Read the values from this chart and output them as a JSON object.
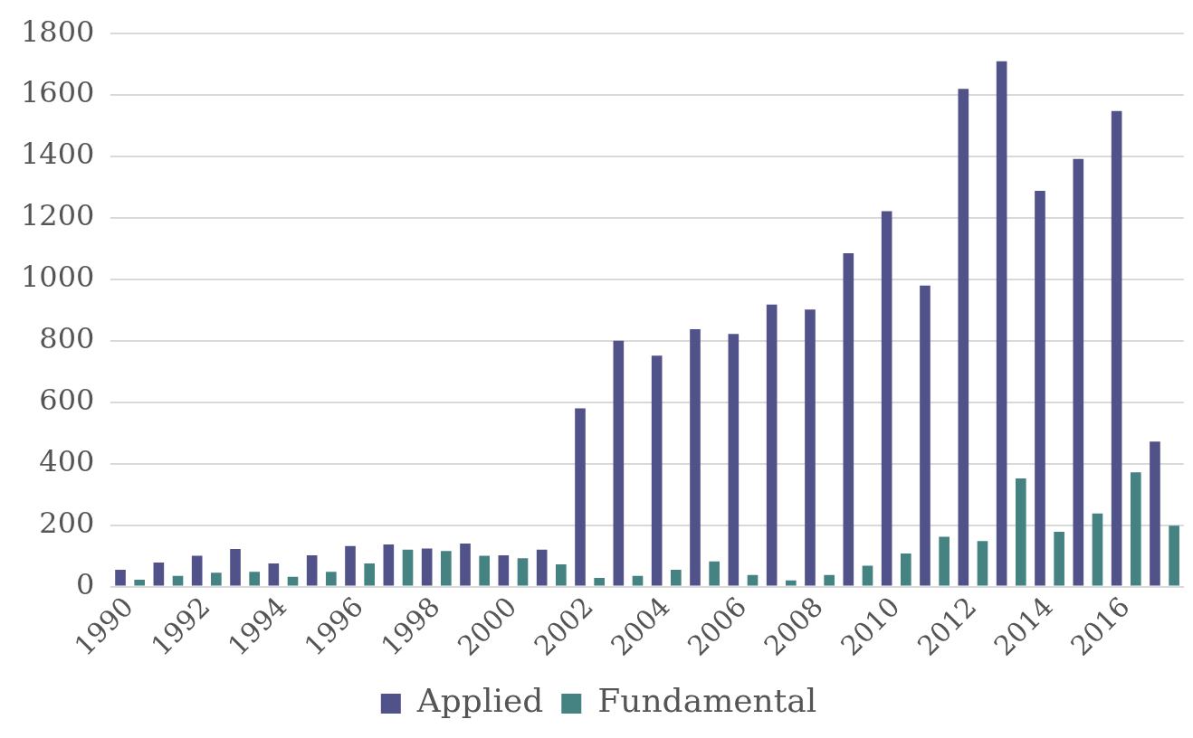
{
  "chart_data": {
    "type": "bar",
    "categories": [
      "1990",
      null,
      "1992",
      null,
      "1994",
      null,
      "1996",
      null,
      "1998",
      null,
      "2000",
      null,
      "2002",
      null,
      "2004",
      null,
      "2006",
      null,
      "2008",
      null,
      "2010",
      null,
      "2012",
      null,
      "2014",
      null,
      "2016",
      null
    ],
    "series": [
      {
        "name": "Applied",
        "color": "#52528a",
        "values": [
          55,
          78,
          100,
          122,
          75,
          102,
          132,
          137,
          124,
          140,
          102,
          120,
          580,
          800,
          752,
          838,
          822,
          918,
          902,
          1085,
          1222,
          980,
          1620,
          1710,
          1288,
          1392,
          1548,
          472
        ]
      },
      {
        "name": "Fundamental",
        "color": "#458282",
        "values": [
          22,
          35,
          45,
          48,
          32,
          48,
          75,
          120,
          116,
          100,
          92,
          72,
          28,
          35,
          55,
          82,
          38,
          20,
          38,
          68,
          108,
          162,
          148,
          352,
          178,
          238,
          372,
          198
        ]
      }
    ],
    "ylim": [
      0,
      1800
    ],
    "yticks": [
      0,
      200,
      400,
      600,
      800,
      1000,
      1200,
      1400,
      1600,
      1800
    ],
    "grid": "y",
    "legend": "bottom"
  }
}
